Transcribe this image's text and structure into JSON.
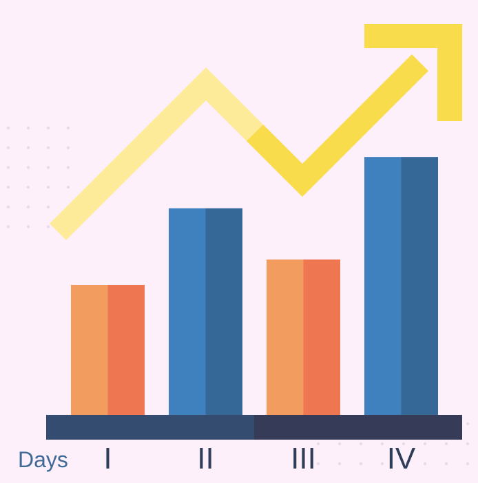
{
  "chart_data": {
    "type": "bar",
    "xlabel": "Days",
    "ylabel": "",
    "title": "",
    "categories": [
      "I",
      "II",
      "III",
      "IV"
    ],
    "values": [
      180,
      286,
      215,
      357
    ],
    "ylim": [
      0,
      400
    ],
    "grid": false,
    "legend": "none",
    "trend_arrow": "up-right",
    "colors": {
      "background": "#fdf0fb",
      "orange_light": "#f29d5f",
      "orange_dark": "#ee7651",
      "blue_light": "#3f81bf",
      "blue_dark": "#356797",
      "baseline_left": "#334c70",
      "baseline_right": "#363b57",
      "arrow_light": "#feeb99",
      "arrow_dark": "#f9dc4c",
      "dots": "#ead9ea",
      "axis_label": "#3f6a96",
      "tick_label": "#2f3d58"
    }
  }
}
